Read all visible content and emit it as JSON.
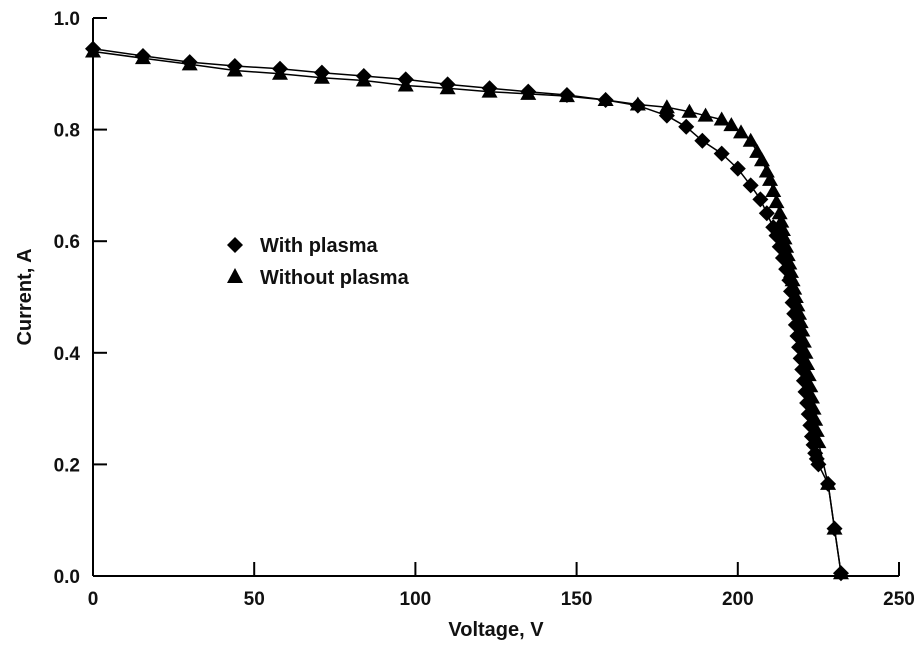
{
  "chart_data": {
    "type": "line",
    "xlabel": "Voltage, V",
    "ylabel": "Current, A",
    "xlim": [
      0,
      250
    ],
    "ylim": [
      0,
      1.0
    ],
    "xticks": [
      0,
      50,
      100,
      150,
      200,
      250
    ],
    "yticks": [
      0.0,
      0.2,
      0.4,
      0.6,
      0.8,
      1.0
    ],
    "xtick_labels": [
      "0",
      "50",
      "100",
      "150",
      "200",
      "250"
    ],
    "ytick_labels": [
      "0.0",
      "0.2",
      "0.4",
      "0.6",
      "0.8",
      "1.0"
    ],
    "grid": false,
    "legend_position": "center-left",
    "series": [
      {
        "name": "With plasma",
        "marker": "diamond",
        "color": "#000000",
        "x": [
          0,
          15.5,
          30,
          44,
          58,
          71,
          84,
          97,
          110,
          123,
          135,
          147,
          159,
          169,
          178,
          184,
          189,
          195,
          200,
          204,
          207,
          209,
          211,
          212,
          213,
          214,
          215,
          216,
          216.5,
          217,
          217.5,
          218,
          218.5,
          219,
          219.5,
          220,
          220.5,
          221,
          221.5,
          222,
          222.5,
          223,
          223.5,
          224,
          224.5,
          225,
          228,
          230,
          232
        ],
        "y": [
          0.945,
          0.932,
          0.921,
          0.914,
          0.909,
          0.902,
          0.896,
          0.89,
          0.881,
          0.874,
          0.868,
          0.862,
          0.853,
          0.843,
          0.825,
          0.805,
          0.78,
          0.757,
          0.73,
          0.7,
          0.675,
          0.65,
          0.625,
          0.61,
          0.59,
          0.57,
          0.55,
          0.53,
          0.51,
          0.49,
          0.47,
          0.45,
          0.43,
          0.41,
          0.39,
          0.37,
          0.35,
          0.33,
          0.31,
          0.29,
          0.27,
          0.25,
          0.235,
          0.22,
          0.21,
          0.2,
          0.165,
          0.085,
          0.005
        ]
      },
      {
        "name": "Without plasma",
        "marker": "triangle",
        "color": "#000000",
        "x": [
          0,
          15.5,
          30,
          44,
          58,
          71,
          84,
          97,
          110,
          123,
          135,
          147,
          159,
          169,
          178,
          185,
          190,
          195,
          198,
          201,
          204,
          206,
          207.5,
          209,
          210,
          211,
          212,
          213,
          213.5,
          214,
          214.5,
          215,
          215.5,
          216,
          216.5,
          217,
          217.5,
          218,
          218.5,
          219,
          219.5,
          220,
          220.5,
          221,
          221.5,
          222,
          222.5,
          223,
          223.5,
          224,
          224.5,
          225,
          228,
          230,
          232
        ],
        "y": [
          0.94,
          0.928,
          0.917,
          0.906,
          0.9,
          0.893,
          0.888,
          0.879,
          0.874,
          0.868,
          0.864,
          0.86,
          0.853,
          0.845,
          0.84,
          0.832,
          0.825,
          0.818,
          0.808,
          0.795,
          0.78,
          0.76,
          0.745,
          0.725,
          0.71,
          0.69,
          0.67,
          0.65,
          0.635,
          0.62,
          0.605,
          0.59,
          0.575,
          0.56,
          0.545,
          0.53,
          0.515,
          0.5,
          0.485,
          0.47,
          0.455,
          0.44,
          0.42,
          0.4,
          0.38,
          0.36,
          0.34,
          0.32,
          0.3,
          0.28,
          0.26,
          0.24,
          0.165,
          0.085,
          0.005
        ]
      }
    ]
  }
}
